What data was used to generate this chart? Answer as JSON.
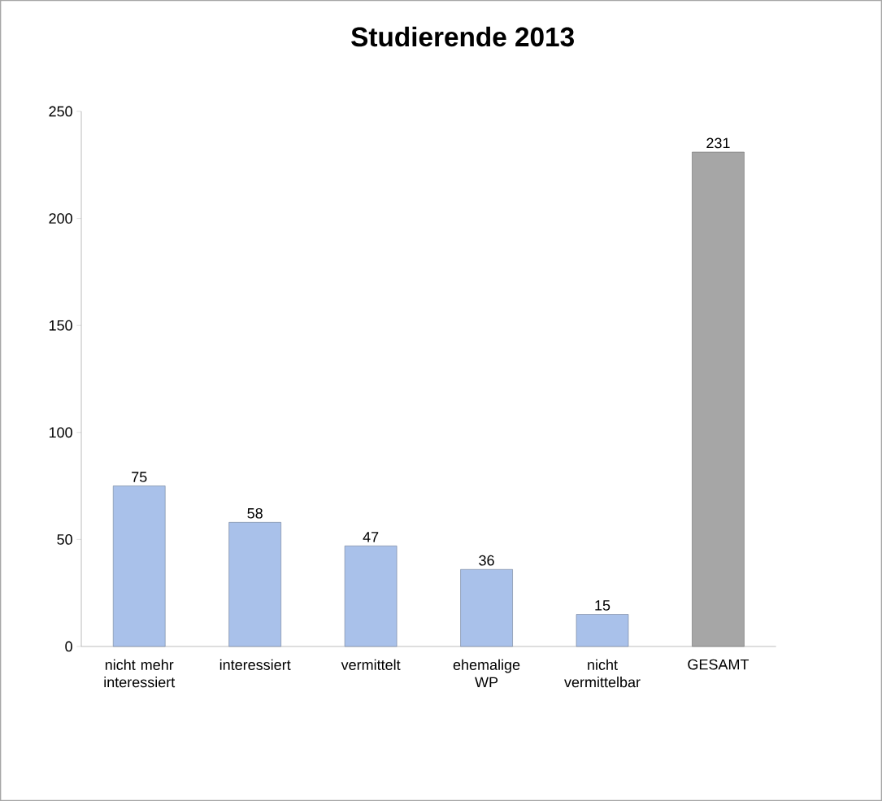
{
  "chart_data": {
    "type": "bar",
    "title": "Studierende 2013",
    "categories": [
      "nicht mehr interessiert",
      "interessiert",
      "vermittelt",
      "ehemalige WP",
      "nicht vermittelbar",
      "GESAMT"
    ],
    "values": [
      75,
      58,
      47,
      36,
      15,
      231
    ],
    "colors": [
      "#a9c1ea",
      "#a9c1ea",
      "#a9c1ea",
      "#a9c1ea",
      "#a9c1ea",
      "#a6a6a6"
    ],
    "ylim": [
      0,
      250
    ],
    "yticks": [
      0,
      50,
      100,
      150,
      200,
      250
    ],
    "data_labels": true
  }
}
